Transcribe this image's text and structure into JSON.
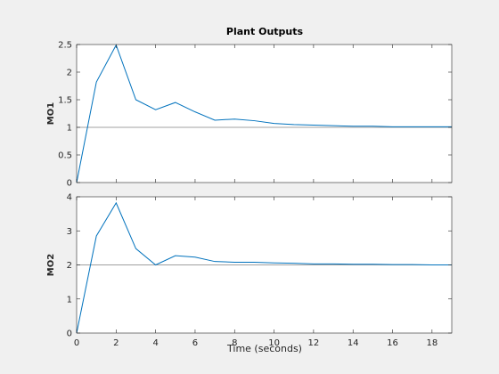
{
  "figure": {
    "title": "Plant Outputs",
    "xlabel": "Time (seconds)",
    "background": "#f0f0f0"
  },
  "colors": {
    "axes_bg": "#ffffff",
    "axes_edge": "#262626",
    "tick_text": "#262626",
    "series": "#0072bd",
    "reference": "#808080"
  },
  "chart_data": [
    {
      "type": "line",
      "ylabel": "MO1",
      "xlim": [
        0,
        19
      ],
      "ylim": [
        0,
        2.5
      ],
      "xticks": [
        0,
        2,
        4,
        6,
        8,
        10,
        12,
        14,
        16,
        18
      ],
      "xtick_labels_shown": false,
      "yticks": [
        0,
        0.5,
        1,
        1.5,
        2,
        2.5
      ],
      "ytick_labels": [
        "0",
        "0.5",
        "1",
        "1.5",
        "2",
        "2.5"
      ],
      "reference": 1,
      "series": [
        {
          "x": [
            0,
            1,
            2,
            3,
            4,
            5,
            6,
            7,
            8,
            9,
            10,
            11,
            12,
            13,
            14,
            15,
            16,
            17,
            18,
            19
          ],
          "y": [
            0,
            1.82,
            2.49,
            1.5,
            1.32,
            1.45,
            1.28,
            1.13,
            1.15,
            1.12,
            1.07,
            1.05,
            1.04,
            1.03,
            1.02,
            1.02,
            1.01,
            1.01,
            1.01,
            1.01
          ]
        }
      ]
    },
    {
      "type": "line",
      "ylabel": "MO2",
      "xlim": [
        0,
        19
      ],
      "ylim": [
        0,
        4
      ],
      "xticks": [
        0,
        2,
        4,
        6,
        8,
        10,
        12,
        14,
        16,
        18
      ],
      "xtick_labels": [
        "0",
        "2",
        "4",
        "6",
        "8",
        "10",
        "12",
        "14",
        "16",
        "18"
      ],
      "yticks": [
        0,
        1,
        2,
        3,
        4
      ],
      "ytick_labels": [
        "0",
        "1",
        "2",
        "3",
        "4"
      ],
      "reference": 2,
      "series": [
        {
          "x": [
            0,
            1,
            2,
            3,
            4,
            5,
            6,
            7,
            8,
            9,
            10,
            11,
            12,
            13,
            14,
            15,
            16,
            17,
            18,
            19
          ],
          "y": [
            0,
            2.85,
            3.82,
            2.48,
            2.0,
            2.27,
            2.23,
            2.1,
            2.08,
            2.08,
            2.06,
            2.05,
            2.03,
            2.03,
            2.02,
            2.02,
            2.01,
            2.01,
            2.0,
            2.0
          ]
        }
      ]
    }
  ]
}
